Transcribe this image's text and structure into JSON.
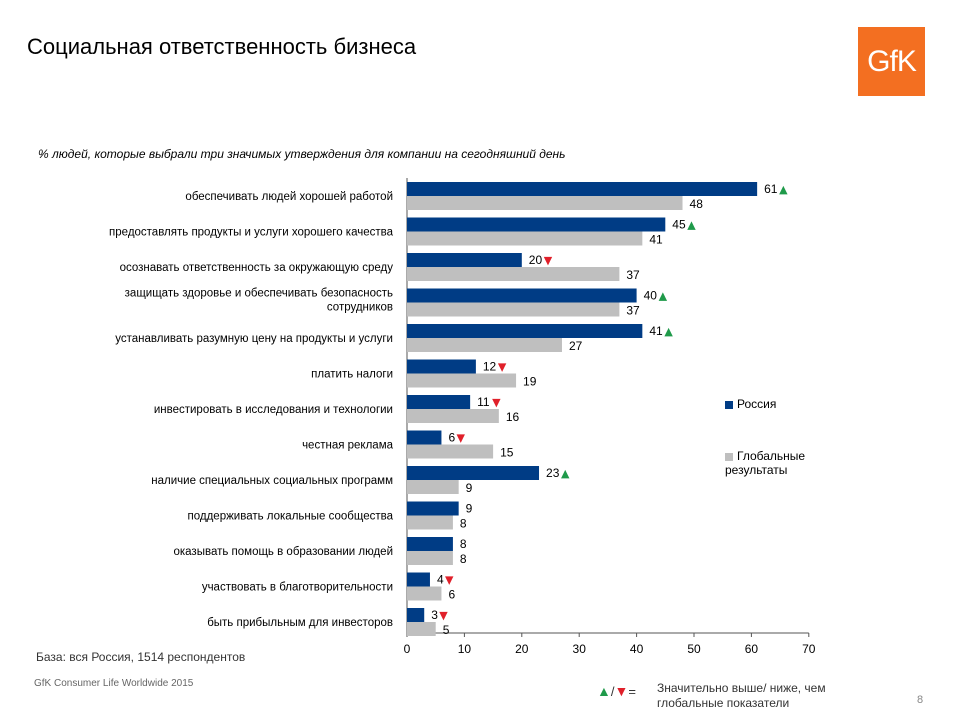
{
  "title": "Социальная ответственность бизнеса",
  "logo_text": "GfK",
  "colors": {
    "russia": "#003c85",
    "global": "#bfbfbf",
    "up": "#1f9a4a",
    "down": "#e0202a",
    "logo": "#f36f21"
  },
  "chart_data": {
    "type": "bar",
    "orientation": "horizontal",
    "title": "% людей, которые выбрали три значимых утверждения для компании на сегодняшний день",
    "categories": [
      [
        "обеспечивать людей хорошей работой"
      ],
      [
        "предоставлять продукты и услуги хорошего качества"
      ],
      [
        "осознавать ответственность за окружающую среду"
      ],
      [
        "защищать здоровье и обеспечивать безопасность",
        "сотрудников"
      ],
      [
        "устанавливать разумную цену на продукты и услуги"
      ],
      [
        "платить налоги"
      ],
      [
        "инвестировать в исследования и технологии"
      ],
      [
        "честная реклама"
      ],
      [
        "наличие специальных социальных программ"
      ],
      [
        "поддерживать локальные сообщества"
      ],
      [
        "оказывать помощь в образовании людей"
      ],
      [
        "участвовать в благотворительности"
      ],
      [
        "быть прибыльным для инвесторов"
      ]
    ],
    "series": [
      {
        "name": "Россия",
        "values": [
          61,
          45,
          20,
          40,
          41,
          12,
          11,
          6,
          23,
          9,
          8,
          4,
          3
        ]
      },
      {
        "name": "Глобальные результаты",
        "values": [
          48,
          41,
          37,
          37,
          27,
          19,
          16,
          15,
          9,
          8,
          8,
          6,
          5
        ]
      }
    ],
    "significance": [
      "up",
      "up",
      "down",
      "up",
      "up",
      "down",
      "down",
      "down",
      "up",
      "",
      "",
      "down",
      "down"
    ],
    "xlim": [
      0,
      70
    ],
    "xticks": [
      0,
      10,
      20,
      30,
      40,
      50,
      60,
      70
    ],
    "legend_position": "right"
  },
  "legend": {
    "russia": "Россия",
    "global_line1": "Глобальные",
    "global_line2": "результаты"
  },
  "footnote": "База: вся Россия, 1514 респондентов",
  "source": "GfK Consumer Life Worldwide 2015",
  "significance_legend": {
    "separator": "/",
    "equals": "=",
    "line1": "Значительно выше/ ниже, чем",
    "line2": "глобальные показатели"
  },
  "page_number": "8"
}
